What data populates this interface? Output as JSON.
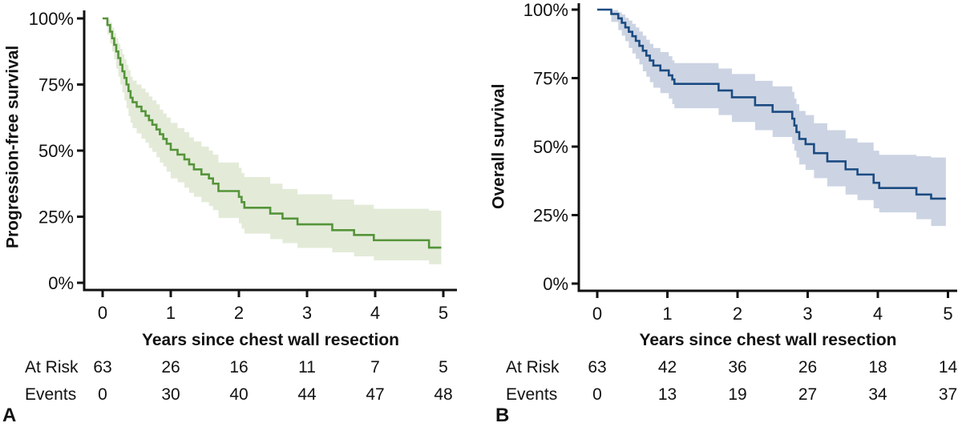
{
  "panels": [
    {
      "corner_label": "A",
      "y_axis_title": "Progression-free survival",
      "x_axis_title": "Years since chest wall resection",
      "at_risk_label": "At Risk",
      "events_label": "Events",
      "at_risk": [
        63,
        26,
        16,
        11,
        7,
        5
      ],
      "events": [
        0,
        30,
        40,
        44,
        47,
        48
      ],
      "x_tick_labels": [
        "0",
        "1",
        "2",
        "3",
        "4",
        "5"
      ],
      "line_color": "#55943a",
      "band_color": "#e3ebd8"
    },
    {
      "corner_label": "B",
      "y_axis_title": "Overall survival",
      "x_axis_title": "Years since chest wall resection",
      "at_risk_label": "At Risk",
      "events_label": "Events",
      "at_risk": [
        63,
        42,
        36,
        26,
        18,
        14
      ],
      "events": [
        0,
        13,
        19,
        27,
        34,
        37
      ],
      "x_tick_labels": [
        "0",
        "1",
        "2",
        "3",
        "4",
        "5"
      ],
      "line_color": "#1b4b82",
      "band_color": "#ccd4e3"
    }
  ],
  "chart_data": [
    {
      "type": "line",
      "subtype": "kaplan-meier-step-with-confidence-band",
      "panel": "A",
      "title": "Progression-free survival",
      "xlabel": "Years since chest wall resection",
      "ylabel": "Progression-free survival",
      "xlim": [
        0,
        5
      ],
      "ylim": [
        0,
        100
      ],
      "x_ticks": [
        0,
        1,
        2,
        3,
        4,
        5
      ],
      "y_ticks": [
        {
          "label": "100%",
          "value": 100
        },
        {
          "label": "75%",
          "value": 75
        },
        {
          "label": "50%",
          "value": 50
        },
        {
          "label": "25%",
          "value": 25
        },
        {
          "label": "0%",
          "value": 0
        }
      ],
      "grid": false,
      "legend": false,
      "end_time": 4.97,
      "steps_format": [
        "time_years",
        "estimate_pct",
        "ci_lower_pct",
        "ci_upper_pct"
      ],
      "steps": [
        [
          0.0,
          100,
          100,
          100
        ],
        [
          0.07,
          97.5,
          94.0,
          99.5
        ],
        [
          0.11,
          95.0,
          90.5,
          98.5
        ],
        [
          0.14,
          92.5,
          87.5,
          96.5
        ],
        [
          0.17,
          90.0,
          84.5,
          94.5
        ],
        [
          0.2,
          87.5,
          81.0,
          92.5
        ],
        [
          0.23,
          85.0,
          78.0,
          90.5
        ],
        [
          0.26,
          82.5,
          75.0,
          88.5
        ],
        [
          0.29,
          80.0,
          72.0,
          86.5
        ],
        [
          0.32,
          77.5,
          69.0,
          84.5
        ],
        [
          0.35,
          75.0,
          66.0,
          82.5
        ],
        [
          0.38,
          72.5,
          63.0,
          80.5
        ],
        [
          0.41,
          70.0,
          60.5,
          78.0
        ],
        [
          0.44,
          68.3,
          58.5,
          76.5
        ],
        [
          0.5,
          66.6,
          56.5,
          75.0
        ],
        [
          0.57,
          64.9,
          54.5,
          73.5
        ],
        [
          0.63,
          63.2,
          53.0,
          72.0
        ],
        [
          0.68,
          61.5,
          51.0,
          70.5
        ],
        [
          0.73,
          59.8,
          49.5,
          69.0
        ],
        [
          0.79,
          58.0,
          47.5,
          67.5
        ],
        [
          0.84,
          56.2,
          45.5,
          65.5
        ],
        [
          0.89,
          54.4,
          44.0,
          64.0
        ],
        [
          0.94,
          52.6,
          42.0,
          62.5
        ],
        [
          1.0,
          50.3,
          39.5,
          60.5
        ],
        [
          1.1,
          48.5,
          38.0,
          58.5
        ],
        [
          1.2,
          46.7,
          36.0,
          57.0
        ],
        [
          1.27,
          44.8,
          34.0,
          55.0
        ],
        [
          1.34,
          42.9,
          32.5,
          53.5
        ],
        [
          1.45,
          41.0,
          30.5,
          51.5
        ],
        [
          1.56,
          39.5,
          29.0,
          50.0
        ],
        [
          1.62,
          37.5,
          27.5,
          48.5
        ],
        [
          1.7,
          34.7,
          24.5,
          45.5
        ],
        [
          2.0,
          32.5,
          22.5,
          43.5
        ],
        [
          2.04,
          30.5,
          20.5,
          41.5
        ],
        [
          2.08,
          28.4,
          18.6,
          40.0
        ],
        [
          2.46,
          26.2,
          16.5,
          37.5
        ],
        [
          2.64,
          24.3,
          15.0,
          35.5
        ],
        [
          2.86,
          22.1,
          13.2,
          33.5
        ],
        [
          3.37,
          19.9,
          11.5,
          31.5
        ],
        [
          3.69,
          18.1,
          10.0,
          29.5
        ],
        [
          3.98,
          16.1,
          8.5,
          28.0
        ],
        [
          4.79,
          13.3,
          7.0,
          27.3
        ]
      ],
      "risk_table": {
        "times": [
          0,
          1,
          2,
          3,
          4,
          5
        ],
        "at_risk": [
          63,
          26,
          16,
          11,
          7,
          5
        ],
        "events": [
          0,
          30,
          40,
          44,
          47,
          48
        ]
      }
    },
    {
      "type": "line",
      "subtype": "kaplan-meier-step-with-confidence-band",
      "panel": "B",
      "title": "Overall survival",
      "xlabel": "Years since chest wall resection",
      "ylabel": "Overall survival",
      "xlim": [
        0,
        5
      ],
      "ylim": [
        0,
        100
      ],
      "x_ticks": [
        0,
        1,
        2,
        3,
        4,
        5
      ],
      "y_ticks": [
        {
          "label": "100%",
          "value": 100
        },
        {
          "label": "75%",
          "value": 75
        },
        {
          "label": "50%",
          "value": 50
        },
        {
          "label": "25%",
          "value": 25
        },
        {
          "label": "0%",
          "value": 0
        }
      ],
      "grid": false,
      "legend": false,
      "end_time": 4.97,
      "steps_format": [
        "time_years",
        "estimate_pct",
        "ci_lower_pct",
        "ci_upper_pct"
      ],
      "steps": [
        [
          0.0,
          100,
          100,
          100
        ],
        [
          0.2,
          98.4,
          95.5,
          99.8
        ],
        [
          0.3,
          96.8,
          92.5,
          99.0
        ],
        [
          0.35,
          95.2,
          90.5,
          98.2
        ],
        [
          0.4,
          93.5,
          88.5,
          97.0
        ],
        [
          0.45,
          91.9,
          86.0,
          96.0
        ],
        [
          0.5,
          90.3,
          84.0,
          94.8
        ],
        [
          0.55,
          88.6,
          82.0,
          93.5
        ],
        [
          0.6,
          86.8,
          80.0,
          92.0
        ],
        [
          0.65,
          85.0,
          77.5,
          90.5
        ],
        [
          0.7,
          83.2,
          75.5,
          89.0
        ],
        [
          0.75,
          81.4,
          73.5,
          87.5
        ],
        [
          0.8,
          79.6,
          71.5,
          86.0
        ],
        [
          0.9,
          77.8,
          69.5,
          84.5
        ],
        [
          1.02,
          76.0,
          67.5,
          83.0
        ],
        [
          1.07,
          74.5,
          65.5,
          81.5
        ],
        [
          1.1,
          72.9,
          64.0,
          80.5
        ],
        [
          1.73,
          70.5,
          61.5,
          78.5
        ],
        [
          1.92,
          68.0,
          59.0,
          76.5
        ],
        [
          2.25,
          65.1,
          56.0,
          74.0
        ],
        [
          2.5,
          62.7,
          53.5,
          72.0
        ],
        [
          2.78,
          60.2,
          51.0,
          70.0
        ],
        [
          2.81,
          57.7,
          48.5,
          67.5
        ],
        [
          2.84,
          55.3,
          46.0,
          65.5
        ],
        [
          2.88,
          52.8,
          43.5,
          63.0
        ],
        [
          2.97,
          50.9,
          41.5,
          61.5
        ],
        [
          3.09,
          47.6,
          38.5,
          58.5
        ],
        [
          3.28,
          44.6,
          35.5,
          56.0
        ],
        [
          3.54,
          41.7,
          32.5,
          53.0
        ],
        [
          3.71,
          39.8,
          30.5,
          51.5
        ],
        [
          3.94,
          36.8,
          27.5,
          48.5
        ],
        [
          4.02,
          34.9,
          26.0,
          47.0
        ],
        [
          4.55,
          32.5,
          23.5,
          46.5
        ],
        [
          4.76,
          31.0,
          21.0,
          46.0
        ]
      ],
      "risk_table": {
        "times": [
          0,
          1,
          2,
          3,
          4,
          5
        ],
        "at_risk": [
          63,
          42,
          36,
          26,
          18,
          14
        ],
        "events": [
          0,
          13,
          19,
          27,
          34,
          37
        ]
      }
    }
  ]
}
